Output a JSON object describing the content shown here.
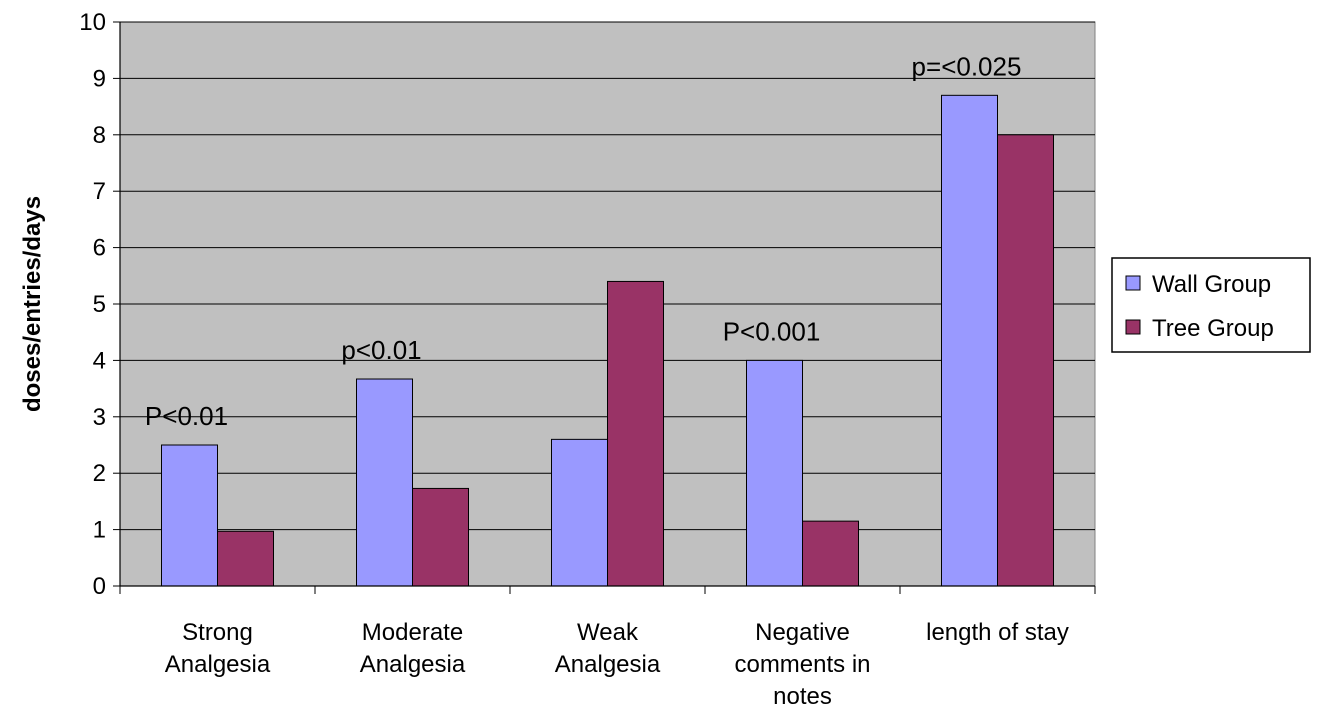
{
  "chart_data": {
    "type": "bar",
    "title": "",
    "xlabel": "",
    "ylabel": "doses/entries/days",
    "ylim": [
      0,
      10
    ],
    "yticks": [
      0,
      1,
      2,
      3,
      4,
      5,
      6,
      7,
      8,
      9,
      10
    ],
    "grid": true,
    "plot_background": "#c0c0c0",
    "legend_position": "right",
    "categories": [
      [
        "Strong",
        "Analgesia"
      ],
      [
        "Moderate",
        "Analgesia"
      ],
      [
        "Weak",
        "Analgesia"
      ],
      [
        "Negative",
        "comments in",
        "notes"
      ],
      [
        "length of stay"
      ]
    ],
    "series": [
      {
        "name": "Wall Group",
        "color": "#9999ff",
        "values": [
          2.5,
          3.67,
          2.6,
          4.0,
          8.7
        ]
      },
      {
        "name": "Tree Group",
        "color": "#993366",
        "values": [
          0.97,
          1.73,
          5.4,
          1.15,
          8.0
        ]
      }
    ],
    "annotations": [
      {
        "category_index": 0,
        "text": "P<0.01"
      },
      {
        "category_index": 1,
        "text": "p<0.01"
      },
      {
        "category_index": 3,
        "text": "P<0.001"
      },
      {
        "category_index": 4,
        "text": "p=<0.025"
      }
    ]
  }
}
